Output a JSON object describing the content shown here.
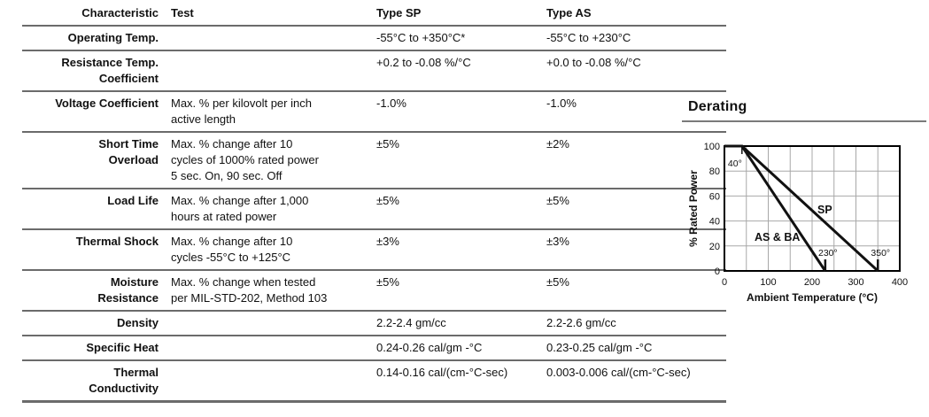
{
  "table": {
    "headers": [
      "Characteristic",
      "Test",
      "Type SP",
      "Type AS"
    ],
    "rows": [
      {
        "characteristic": "Operating Temp.",
        "test": "",
        "type_sp": "-55°C to +350°C*",
        "type_as": "-55°C to +230°C"
      },
      {
        "characteristic": "Resistance Temp.\nCoefficient",
        "test": "",
        "type_sp": "+0.2 to -0.08 %/°C",
        "type_as": "+0.0 to -0.08 %/°C"
      },
      {
        "characteristic": "Voltage Coefficient",
        "test": "Max. % per kilovolt per inch\nactive length",
        "type_sp": "-1.0%",
        "type_as": "-1.0%"
      },
      {
        "characteristic": "Short Time\nOverload",
        "test": "Max. % change after 10\ncycles of 1000% rated power\n5 sec. On, 90 sec. Off",
        "type_sp": "±5%",
        "type_as": "±2%"
      },
      {
        "characteristic": "Load Life",
        "test": "Max. % change after 1,000\nhours at rated power",
        "type_sp": "±5%",
        "type_as": "±5%"
      },
      {
        "characteristic": "Thermal Shock",
        "test": "Max. % change after 10\ncycles -55°C to +125°C",
        "type_sp": "±3%",
        "type_as": "±3%"
      },
      {
        "characteristic": "Moisture\nResistance",
        "test": "Max. % change when tested\nper MIL-STD-202, Method 103",
        "type_sp": "±5%",
        "type_as": "±5%"
      },
      {
        "characteristic": "Density",
        "test": "",
        "type_sp": "2.2-2.4 gm/cc",
        "type_as": "2.2-2.6 gm/cc"
      },
      {
        "characteristic": "Specific Heat",
        "test": "",
        "type_sp": "0.24-0.26 cal/gm -°C",
        "type_as": "0.23-0.25 cal/gm -°C"
      },
      {
        "characteristic": "Thermal\nConductivity",
        "test": "",
        "type_sp": "0.14-0.16 cal/(cm-°C-sec)",
        "type_as": "0.003-0.006 cal/(cm-°C-sec)"
      }
    ]
  },
  "derating": {
    "title": "Derating",
    "chart_data": {
      "type": "line",
      "title": "Derating",
      "xlabel": "Ambient Temperature (°C)",
      "ylabel": "% Rated Power",
      "xlim": [
        0,
        400
      ],
      "ylim": [
        0,
        100
      ],
      "x_ticks": [
        0,
        100,
        200,
        300,
        400
      ],
      "y_ticks": [
        0,
        20,
        40,
        60,
        80,
        100
      ],
      "x_grid_step": 50,
      "y_grid_step": 20,
      "grid": true,
      "legend_position": "inline-labels",
      "series": [
        {
          "name": "SP",
          "points": [
            [
              0,
              100
            ],
            [
              40,
              100
            ],
            [
              350,
              0
            ]
          ]
        },
        {
          "name": "AS & BA",
          "points": [
            [
              0,
              100
            ],
            [
              40,
              100
            ],
            [
              230,
              0
            ]
          ]
        }
      ],
      "annotations": [
        {
          "text": "40°",
          "x": 40,
          "y": 100,
          "placement": "below-left"
        },
        {
          "text": "230°",
          "x": 230,
          "y": 0,
          "placement": "above"
        },
        {
          "text": "350°",
          "x": 350,
          "y": 0,
          "placement": "above"
        }
      ],
      "colors": {
        "line": "#111111",
        "grid": "#a8a8a8",
        "axis": "#000000"
      }
    }
  }
}
